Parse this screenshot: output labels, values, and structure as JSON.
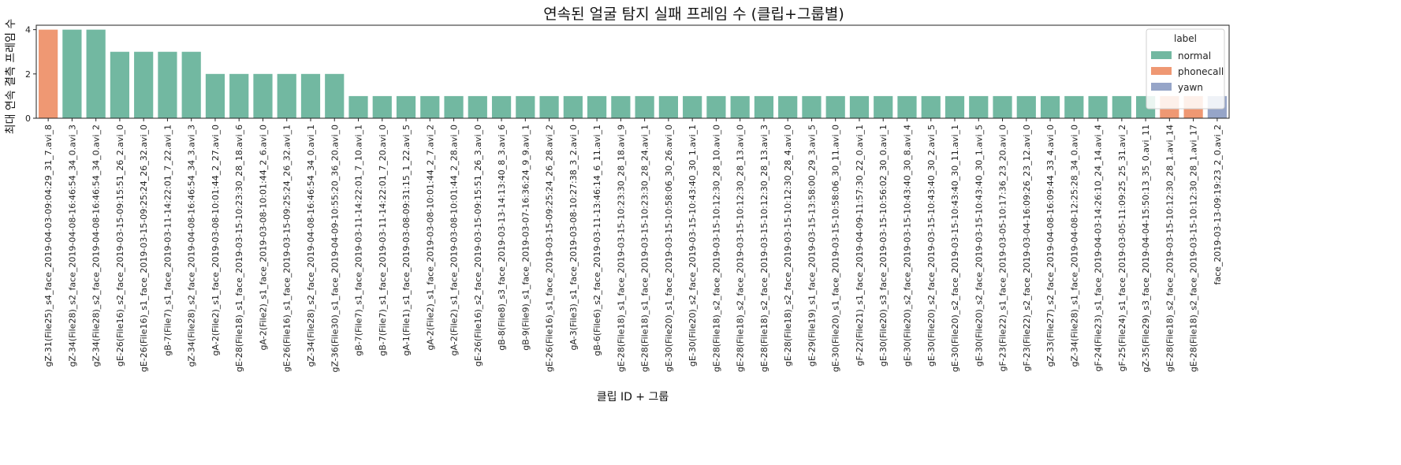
{
  "chart_data": {
    "type": "bar",
    "title": "연속된 얼굴 탐지 실패 프레임 수 (클립+그룹별)",
    "xlabel": "클립 ID + 그룹",
    "ylabel": "최대 연속 결측 프레임 수",
    "ylim": [
      0,
      4.2
    ],
    "yticks": [
      "0",
      "2",
      "4"
    ],
    "ytick_values": [
      0,
      2,
      4
    ],
    "grid": false,
    "legend": {
      "title": "label",
      "placement": "top-right",
      "entries": [
        {
          "name": "normal",
          "color": "#72b8a1"
        },
        {
          "name": "phonecall",
          "color": "#ef9873"
        },
        {
          "name": "yawn",
          "color": "#96a5c8"
        }
      ]
    },
    "categories": [
      "gZ-31(File25)_s4_face_2019-04-03-09:04:29_31_7.avi_8",
      "gZ-34(File28)_s2_face_2019-04-08-16:46:54_34_0.avi_3",
      "gZ-34(File28)_s2_face_2019-04-08-16:46:54_34_0.avi_2",
      "gE-26(File16)_s2_face_2019-03-15-09:15:51_26_2.avi_0",
      "gE-26(File16)_s1_face_2019-03-15-09:25:24_26_32.avi_0",
      "gB-7(File7)_s1_face_2019-03-11-14:22:01_7_22.avi_1",
      "gZ-34(File28)_s2_face_2019-04-08-16:46:54_34_3.avi_3",
      "gA-2(File2)_s1_face_2019-03-08-10:01:44_2_27.avi_0",
      "gE-28(File18)_s1_face_2019-03-15-10:23:30_28_18.avi_6",
      "gA-2(File2)_s1_face_2019-03-08-10:01:44_2_6.avi_0",
      "gE-26(File16)_s1_face_2019-03-15-09:25:24_26_32.avi_1",
      "gZ-34(File28)_s2_face_2019-04-08-16:46:54_34_0.avi_1",
      "gZ-36(File30)_s1_face_2019-04-09-10:55:20_36_20.avi_0",
      "gB-7(File7)_s1_face_2019-03-11-14:22:01_7_10.avi_1",
      "gB-7(File7)_s1_face_2019-03-11-14:22:01_7_20.avi_0",
      "gA-1(File1)_s1_face_2019-03-08-09:31:15_1_22.avi_5",
      "gA-2(File2)_s1_face_2019-03-08-10:01:44_2_7.avi_2",
      "gA-2(File2)_s1_face_2019-03-08-10:01:44_2_28.avi_0",
      "gE-26(File16)_s2_face_2019-03-15-09:15:51_26_3.avi_0",
      "gB-8(File8)_s3_face_2019-03-13-14:13:40_8_3.avi_6",
      "gB-9(File9)_s1_face_2019-03-07-16:36:24_9_9.avi_1",
      "gE-26(File16)_s1_face_2019-03-15-09:25:24_26_28.avi_2",
      "gA-3(File3)_s1_face_2019-03-08-10:27:38_3_2.avi_0",
      "gB-6(File6)_s2_face_2019-03-11-13:46:14_6_11.avi_1",
      "gE-28(File18)_s1_face_2019-03-15-10:23:30_28_18.avi_9",
      "gE-28(File18)_s1_face_2019-03-15-10:23:30_28_24.avi_1",
      "gE-30(File20)_s1_face_2019-03-15-10:58:06_30_26.avi_0",
      "gE-30(File20)_s2_face_2019-03-15-10:43:40_30_1.avi_1",
      "gE-28(File18)_s2_face_2019-03-15-10:12:30_28_10.avi_0",
      "gE-28(File18)_s2_face_2019-03-15-10:12:30_28_13.avi_0",
      "gE-28(File18)_s2_face_2019-03-15-10:12:30_28_13.avi_3",
      "gE-28(File18)_s2_face_2019-03-15-10:12:30_28_4.avi_0",
      "gE-29(File19)_s1_face_2019-03-15-13:58:00_29_3.avi_5",
      "gE-30(File20)_s1_face_2019-03-15-10:58:06_30_11.avi_0",
      "gF-22(File21)_s1_face_2019-04-09-11:57:30_22_0.avi_1",
      "gE-30(File20)_s3_face_2019-03-15-10:56:02_30_0.avi_1",
      "gE-30(File20)_s2_face_2019-03-15-10:43:40_30_8.avi_4",
      "gE-30(File20)_s2_face_2019-03-15-10:43:40_30_2.avi_5",
      "gE-30(File20)_s2_face_2019-03-15-10:43:40_30_11.avi_1",
      "gE-30(File20)_s2_face_2019-03-15-10:43:40_30_1.avi_5",
      "gF-23(File22)_s1_face_2019-03-05-10:17:36_23_20.avi_0",
      "gF-23(File22)_s2_face_2019-03-04-16:09:26_23_12.avi_0",
      "gZ-33(File27)_s2_face_2019-04-08-16:09:44_33_4.avi_0",
      "gZ-34(File28)_s1_face_2019-04-08-12:25:28_34_0.avi_0",
      "gF-24(File23)_s1_face_2019-04-03-14:26:10_24_14.avi_4",
      "gF-25(File24)_s1_face_2019-03-05-11:09:25_25_31.avi_2",
      "gZ-35(File29)_s3_face_2019-04-04-15:50:13_35_0.avi_11",
      "gE-28(File18)_s2_face_2019-03-15-10:12:30_28_1.avi_14",
      "gE-28(File18)_s2_face_2019-03-15-10:12:30_28_1.avi_17",
      "face_2019-03-13-09:19:23_2_0.avi_2"
    ],
    "values": [
      4,
      4,
      4,
      3,
      3,
      3,
      3,
      2,
      2,
      2,
      2,
      2,
      2,
      1,
      1,
      1,
      1,
      1,
      1,
      1,
      1,
      1,
      1,
      1,
      1,
      1,
      1,
      1,
      1,
      1,
      1,
      1,
      1,
      1,
      1,
      1,
      1,
      1,
      1,
      1,
      1,
      1,
      1,
      1,
      1,
      1,
      1,
      1,
      1,
      1
    ],
    "bar_labels": [
      "phonecall",
      "normal",
      "normal",
      "normal",
      "normal",
      "normal",
      "normal",
      "normal",
      "normal",
      "normal",
      "normal",
      "normal",
      "normal",
      "normal",
      "normal",
      "normal",
      "normal",
      "normal",
      "normal",
      "normal",
      "normal",
      "normal",
      "normal",
      "normal",
      "normal",
      "normal",
      "normal",
      "normal",
      "normal",
      "normal",
      "normal",
      "normal",
      "normal",
      "normal",
      "normal",
      "normal",
      "normal",
      "normal",
      "normal",
      "normal",
      "normal",
      "normal",
      "normal",
      "normal",
      "normal",
      "normal",
      "normal",
      "phonecall",
      "phonecall",
      "yawn"
    ]
  }
}
